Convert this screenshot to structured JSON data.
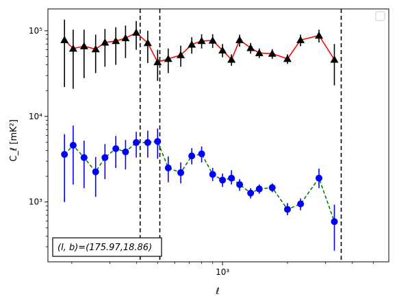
{
  "chart_data": {
    "type": "line",
    "title": "",
    "xlabel": "ℓ",
    "ylabel": "C_ℓ  [mK²]",
    "x_scale": "log",
    "y_scale": "log",
    "xlim": [
      155,
      5900
    ],
    "ylim": [
      200,
      180000
    ],
    "x_ticks": [
      {
        "value": 1000,
        "label": "10³"
      }
    ],
    "y_ticks": [
      {
        "value": 1000,
        "label": "10³"
      },
      {
        "value": 10000,
        "label": "10⁴"
      },
      {
        "value": 100000,
        "label": "10⁵"
      }
    ],
    "grid": false,
    "legend": {
      "placement": "top-right",
      "entries": []
    },
    "annotation": "(l, b)=(175.97,18.86)",
    "vlines": [
      {
        "x": 415
      },
      {
        "x": 512
      },
      {
        "x": 3550
      }
    ],
    "series": [
      {
        "marker": "triangle",
        "marker_color": "#000000",
        "line_color": "#ff0000",
        "line_style": "solid",
        "errorbar_color": "#000000",
        "points": [
          {
            "x": 185,
            "y": 78000,
            "lo": 22000,
            "hi": 135000
          },
          {
            "x": 203,
            "y": 62000,
            "lo": 21000,
            "hi": 103000
          },
          {
            "x": 228,
            "y": 66000,
            "lo": 28000,
            "hi": 103000
          },
          {
            "x": 258,
            "y": 61000,
            "lo": 32000,
            "hi": 90000
          },
          {
            "x": 285,
            "y": 73000,
            "lo": 38000,
            "hi": 105000
          },
          {
            "x": 320,
            "y": 76000,
            "lo": 40000,
            "hi": 110000
          },
          {
            "x": 355,
            "y": 82000,
            "lo": 48000,
            "hi": 115000
          },
          {
            "x": 398,
            "y": 95000,
            "lo": 60000,
            "hi": 130000
          },
          {
            "x": 450,
            "y": 72000,
            "lo": 42000,
            "hi": 100000
          },
          {
            "x": 500,
            "y": 43000,
            "lo": 26000,
            "hi": 60000
          },
          {
            "x": 560,
            "y": 47000,
            "lo": 32000,
            "hi": 62000
          },
          {
            "x": 640,
            "y": 52000,
            "lo": 38000,
            "hi": 67000
          },
          {
            "x": 720,
            "y": 69000,
            "lo": 54000,
            "hi": 84000
          },
          {
            "x": 800,
            "y": 76000,
            "lo": 62000,
            "hi": 91000
          },
          {
            "x": 900,
            "y": 77000,
            "lo": 63000,
            "hi": 91000
          },
          {
            "x": 1000,
            "y": 59000,
            "lo": 49000,
            "hi": 70000
          },
          {
            "x": 1100,
            "y": 46000,
            "lo": 39000,
            "hi": 53000
          },
          {
            "x": 1200,
            "y": 78000,
            "lo": 65000,
            "hi": 90000
          },
          {
            "x": 1350,
            "y": 63000,
            "lo": 54000,
            "hi": 72000
          },
          {
            "x": 1480,
            "y": 55000,
            "lo": 48000,
            "hi": 62000
          },
          {
            "x": 1700,
            "y": 54000,
            "lo": 47000,
            "hi": 61000
          },
          {
            "x": 2000,
            "y": 47000,
            "lo": 41000,
            "hi": 53000
          },
          {
            "x": 2300,
            "y": 78000,
            "lo": 66000,
            "hi": 90000
          },
          {
            "x": 2800,
            "y": 88000,
            "lo": 73000,
            "hi": 103000
          },
          {
            "x": 3300,
            "y": 46000,
            "lo": 23000,
            "hi": 70000
          }
        ]
      },
      {
        "marker": "circle",
        "marker_color": "#0000ff",
        "line_color": "#008000",
        "line_style": "dashed",
        "errorbar_color": "#0000ff",
        "points": [
          {
            "x": 185,
            "y": 3600,
            "lo": 1000,
            "hi": 6200
          },
          {
            "x": 203,
            "y": 4600,
            "lo": 1600,
            "hi": 7800
          },
          {
            "x": 228,
            "y": 3300,
            "lo": 1450,
            "hi": 5200
          },
          {
            "x": 258,
            "y": 2250,
            "lo": 1150,
            "hi": 3350
          },
          {
            "x": 285,
            "y": 3300,
            "lo": 1850,
            "hi": 4750
          },
          {
            "x": 320,
            "y": 4200,
            "lo": 2500,
            "hi": 5900
          },
          {
            "x": 355,
            "y": 3850,
            "lo": 2400,
            "hi": 5300
          },
          {
            "x": 398,
            "y": 4950,
            "lo": 3300,
            "hi": 6600
          },
          {
            "x": 450,
            "y": 4950,
            "lo": 3300,
            "hi": 6800
          },
          {
            "x": 500,
            "y": 5100,
            "lo": 3200,
            "hi": 7200
          },
          {
            "x": 560,
            "y": 2500,
            "lo": 1700,
            "hi": 3400
          },
          {
            "x": 640,
            "y": 2200,
            "lo": 1650,
            "hi": 2900
          },
          {
            "x": 720,
            "y": 3450,
            "lo": 2750,
            "hi": 4250
          },
          {
            "x": 800,
            "y": 3650,
            "lo": 2900,
            "hi": 4450
          },
          {
            "x": 900,
            "y": 2100,
            "lo": 1750,
            "hi": 2500
          },
          {
            "x": 1000,
            "y": 1800,
            "lo": 1500,
            "hi": 2150
          },
          {
            "x": 1100,
            "y": 1900,
            "lo": 1600,
            "hi": 2350
          },
          {
            "x": 1200,
            "y": 1600,
            "lo": 1350,
            "hi": 1850
          },
          {
            "x": 1350,
            "y": 1270,
            "lo": 1100,
            "hi": 1450
          },
          {
            "x": 1480,
            "y": 1420,
            "lo": 1250,
            "hi": 1600
          },
          {
            "x": 1700,
            "y": 1470,
            "lo": 1300,
            "hi": 1650
          },
          {
            "x": 2000,
            "y": 820,
            "lo": 700,
            "hi": 970
          },
          {
            "x": 2300,
            "y": 950,
            "lo": 800,
            "hi": 1100
          },
          {
            "x": 2800,
            "y": 1900,
            "lo": 1450,
            "hi": 2450
          },
          {
            "x": 3300,
            "y": 590,
            "lo": 270,
            "hi": 930
          }
        ]
      }
    ]
  }
}
